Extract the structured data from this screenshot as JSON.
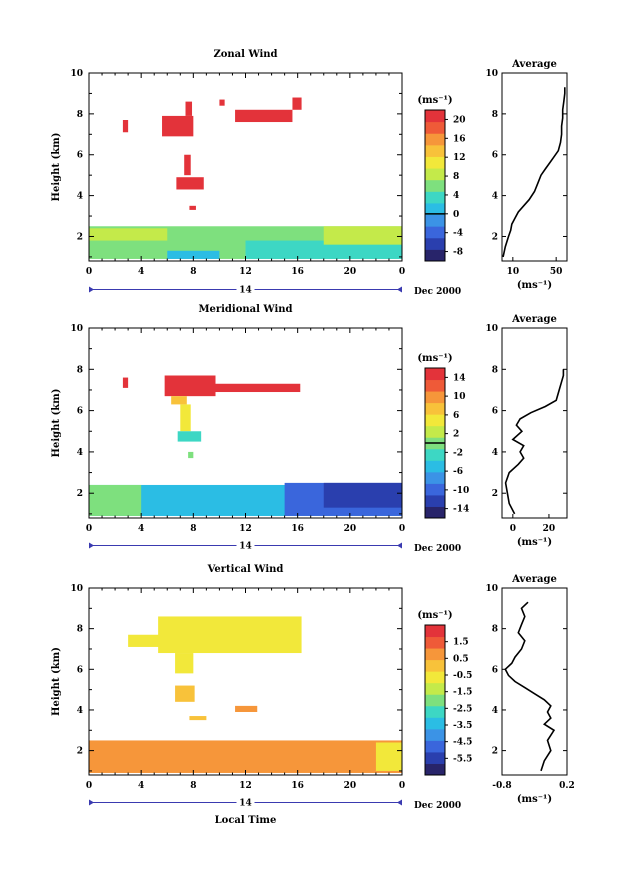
{
  "figure": {
    "x_axis_label": "Local Time",
    "date_label": "Dec 2000",
    "day_label": "14",
    "x_tick_labels": [
      "0",
      "4",
      "8",
      "12",
      "16",
      "20",
      "0"
    ],
    "y_axis_label": "Height (km)",
    "y_tick_labels": [
      "10",
      "8",
      "6",
      "4",
      "2"
    ],
    "unit_label": "(ms⁻¹)"
  },
  "chart_data": [
    {
      "type": "heatmap",
      "title": "Zonal Wind",
      "xlabel": "",
      "ylabel": "Height (km)",
      "xlim": [
        0,
        24
      ],
      "ylim": [
        0.8,
        10
      ],
      "colorbar": {
        "range": [
          -10,
          22
        ],
        "tick_labels": [
          "20",
          "16",
          "12",
          "8",
          "4",
          "0",
          "-4",
          "-8"
        ],
        "tick_values": [
          20,
          16,
          12,
          8,
          4,
          0,
          -4,
          -8
        ],
        "zero_line": 0
      },
      "regions": [
        {
          "x": [
            0,
            24
          ],
          "y": [
            0.9,
            2.5
          ],
          "value": 5
        },
        {
          "x": [
            12,
            24
          ],
          "y": [
            0.9,
            1.8
          ],
          "value": 3
        },
        {
          "x": [
            0,
            6
          ],
          "y": [
            1.8,
            2.4
          ],
          "value": 8
        },
        {
          "x": [
            18,
            24
          ],
          "y": [
            1.6,
            2.5
          ],
          "value": 9
        },
        {
          "x": [
            6,
            10
          ],
          "y": [
            0.9,
            1.3
          ],
          "value": 0
        },
        {
          "x": [
            2.6,
            3.0
          ],
          "y": [
            7.1,
            7.7
          ],
          "value": 22
        },
        {
          "x": [
            5.6,
            8.0
          ],
          "y": [
            6.9,
            7.9
          ],
          "value": 22
        },
        {
          "x": [
            7.4,
            7.9
          ],
          "y": [
            7.9,
            8.6
          ],
          "value": 22
        },
        {
          "x": [
            10.0,
            10.4
          ],
          "y": [
            8.4,
            8.7
          ],
          "value": 22
        },
        {
          "x": [
            11.2,
            15.6
          ],
          "y": [
            7.6,
            8.2
          ],
          "value": 22
        },
        {
          "x": [
            15.6,
            16.3
          ],
          "y": [
            8.2,
            8.8
          ],
          "value": 22
        },
        {
          "x": [
            7.3,
            7.8
          ],
          "y": [
            5.0,
            6.0
          ],
          "value": 22
        },
        {
          "x": [
            6.7,
            8.8
          ],
          "y": [
            4.3,
            4.9
          ],
          "value": 22
        },
        {
          "x": [
            7.7,
            8.2
          ],
          "y": [
            3.3,
            3.5
          ],
          "value": 22
        }
      ],
      "average_profile": {
        "xlim": [
          0,
          60
        ],
        "x_tick_labels": [
          "10",
          "50"
        ],
        "x_tick_values": [
          10,
          50
        ],
        "height": [
          1.0,
          1.5,
          2.0,
          2.3,
          2.6,
          2.9,
          3.2,
          3.5,
          3.8,
          4.2,
          4.6,
          5.0,
          5.3,
          5.6,
          5.9,
          6.2,
          6.6,
          7.0,
          7.4,
          7.8,
          8.2,
          8.6,
          9.0,
          9.3
        ],
        "values": [
          1,
          3,
          6,
          8,
          9,
          12,
          15,
          20,
          25,
          30,
          33,
          36,
          40,
          44,
          48,
          52,
          54,
          55,
          55,
          56,
          56,
          57,
          58,
          58
        ],
        "xlabel": "(ms⁻¹)"
      }
    },
    {
      "type": "heatmap",
      "title": "Meridional Wind",
      "xlabel": "",
      "ylabel": "Height (km)",
      "xlim": [
        0,
        24
      ],
      "ylim": [
        0.8,
        10
      ],
      "colorbar": {
        "range": [
          -16,
          16
        ],
        "tick_labels": [
          "14",
          "10",
          "6",
          "2",
          "-2",
          "-6",
          "-10",
          "-14"
        ],
        "tick_values": [
          14,
          10,
          6,
          2,
          -2,
          -6,
          -10,
          -14
        ],
        "zero_line": 0
      },
      "regions": [
        {
          "x": [
            0,
            24
          ],
          "y": [
            0.9,
            2.4
          ],
          "value": -4
        },
        {
          "x": [
            4,
            16
          ],
          "y": [
            0.9,
            2.3
          ],
          "value": -6
        },
        {
          "x": [
            15,
            24
          ],
          "y": [
            0.9,
            2.5
          ],
          "value": -11
        },
        {
          "x": [
            18,
            24
          ],
          "y": [
            1.3,
            2.5
          ],
          "value": -13
        },
        {
          "x": [
            0,
            4
          ],
          "y": [
            0.9,
            2.4
          ],
          "value": -1
        },
        {
          "x": [
            2.6,
            3.0
          ],
          "y": [
            7.1,
            7.6
          ],
          "value": 16
        },
        {
          "x": [
            5.8,
            9.7
          ],
          "y": [
            6.7,
            7.7
          ],
          "value": 16
        },
        {
          "x": [
            9.7,
            16.2
          ],
          "y": [
            6.9,
            7.3
          ],
          "value": 16
        },
        {
          "x": [
            6.3,
            7.5
          ],
          "y": [
            6.3,
            6.7
          ],
          "value": 8
        },
        {
          "x": [
            7.0,
            7.8
          ],
          "y": [
            5.0,
            6.3
          ],
          "value": 4
        },
        {
          "x": [
            6.8,
            8.6
          ],
          "y": [
            4.5,
            5.0
          ],
          "value": -2
        },
        {
          "x": [
            7.6,
            8.0
          ],
          "y": [
            3.7,
            4.0
          ],
          "value": 1
        }
      ],
      "average_profile": {
        "xlim": [
          -6,
          30
        ],
        "x_tick_labels": [
          "0",
          "20"
        ],
        "x_tick_values": [
          0,
          20
        ],
        "height": [
          1.0,
          1.5,
          2.0,
          2.5,
          3.0,
          3.4,
          3.7,
          4.0,
          4.3,
          4.6,
          5.0,
          5.3,
          5.6,
          5.9,
          6.2,
          6.5,
          6.8,
          7.1,
          7.4,
          7.7,
          8.0
        ],
        "values": [
          1,
          -2,
          -3,
          -4,
          -2,
          3,
          6,
          4,
          6,
          0,
          5,
          2,
          4,
          10,
          18,
          24,
          25,
          26,
          27,
          28,
          28
        ],
        "xlabel": "(ms⁻¹)"
      }
    },
    {
      "type": "heatmap",
      "title": "Vertical Wind",
      "xlabel": "Local Time",
      "ylabel": "Height (km)",
      "xlim": [
        0,
        24
      ],
      "ylim": [
        0.8,
        10
      ],
      "colorbar": {
        "range": [
          -6.5,
          2.5
        ],
        "tick_labels": [
          "1.5",
          "0.5",
          "-0.5",
          "-1.5",
          "-2.5",
          "-3.5",
          "-4.5",
          "-5.5"
        ],
        "tick_values": [
          1.5,
          0.5,
          -0.5,
          -1.5,
          -2.5,
          -3.5,
          -4.5,
          -5.5
        ]
      },
      "regions": [
        {
          "x": [
            0,
            24
          ],
          "y": [
            0.9,
            2.5
          ],
          "value": 0.6
        },
        {
          "x": [
            2,
            22
          ],
          "y": [
            1.2,
            2.3
          ],
          "value": 0.9
        },
        {
          "x": [
            22,
            24
          ],
          "y": [
            1.0,
            2.4
          ],
          "value": -0.6
        },
        {
          "x": [
            5.3,
            16.3
          ],
          "y": [
            6.8,
            8.6
          ],
          "value": -0.7
        },
        {
          "x": [
            3.0,
            5.5
          ],
          "y": [
            7.1,
            7.7
          ],
          "value": -0.6
        },
        {
          "x": [
            6.6,
            8.0
          ],
          "y": [
            5.8,
            6.8
          ],
          "value": -0.5
        },
        {
          "x": [
            6.6,
            8.1
          ],
          "y": [
            4.4,
            5.2
          ],
          "value": 0.3
        },
        {
          "x": [
            7.7,
            9.0
          ],
          "y": [
            3.5,
            3.7
          ],
          "value": 0.4
        },
        {
          "x": [
            11.2,
            12.9
          ],
          "y": [
            3.9,
            4.2
          ],
          "value": 0.5
        }
      ],
      "average_profile": {
        "xlim": [
          -0.8,
          0.2
        ],
        "x_tick_labels": [
          "-0.8",
          "0.2"
        ],
        "x_tick_values": [
          -0.8,
          0.2
        ],
        "height": [
          1.0,
          1.5,
          2.0,
          2.5,
          3.0,
          3.3,
          3.6,
          3.9,
          4.2,
          4.5,
          4.8,
          5.1,
          5.4,
          5.7,
          6.0,
          6.3,
          6.6,
          7.0,
          7.4,
          7.8,
          8.2,
          8.6,
          9.0,
          9.3
        ],
        "values": [
          -0.2,
          -0.15,
          -0.05,
          -0.1,
          0.0,
          -0.15,
          -0.05,
          -0.1,
          -0.05,
          -0.15,
          -0.3,
          -0.45,
          -0.6,
          -0.7,
          -0.75,
          -0.65,
          -0.6,
          -0.5,
          -0.45,
          -0.55,
          -0.5,
          -0.45,
          -0.5,
          -0.4
        ],
        "xlabel": "(ms⁻¹)"
      }
    }
  ]
}
